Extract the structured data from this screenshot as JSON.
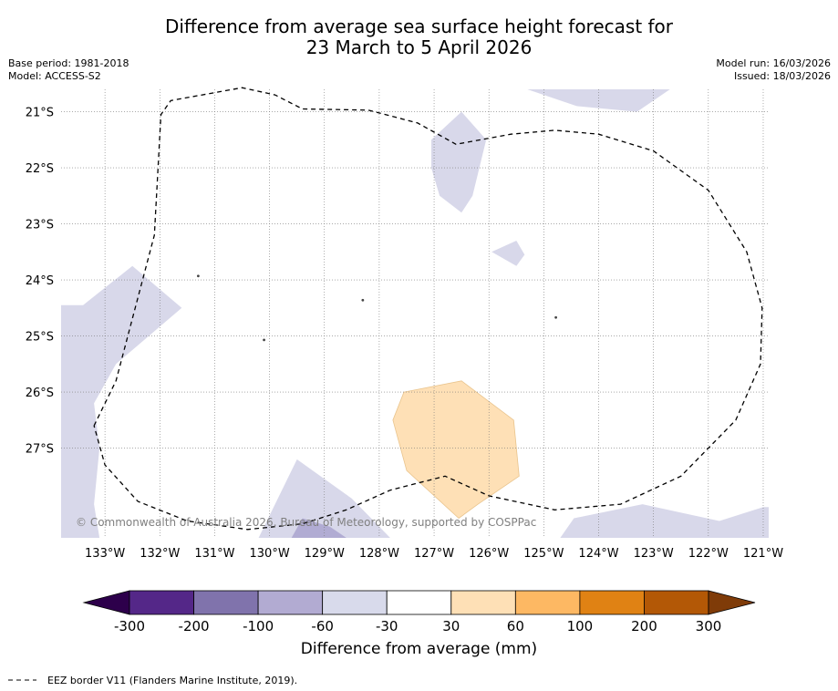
{
  "title": {
    "line1": "Difference from average sea surface height forecast for",
    "line2": "23 March to 5 April 2026"
  },
  "meta": {
    "base_period": "Base period: 1981-2018",
    "model": "Model: ACCESS-S2",
    "model_run": "Model run: 16/03/2026",
    "issued": "Issued: 18/03/2026"
  },
  "map": {
    "lon_range": [
      -133.8,
      -120.9
    ],
    "lat_range": [
      -28.6,
      -20.6
    ],
    "lon_ticks": [
      {
        "value": -133,
        "label": "133°W"
      },
      {
        "value": -132,
        "label": "132°W"
      },
      {
        "value": -131,
        "label": "131°W"
      },
      {
        "value": -130,
        "label": "130°W"
      },
      {
        "value": -129,
        "label": "129°W"
      },
      {
        "value": -128,
        "label": "128°W"
      },
      {
        "value": -127,
        "label": "127°W"
      },
      {
        "value": -126,
        "label": "126°W"
      },
      {
        "value": -125,
        "label": "125°W"
      },
      {
        "value": -124,
        "label": "124°W"
      },
      {
        "value": -123,
        "label": "123°W"
      },
      {
        "value": -122,
        "label": "122°W"
      },
      {
        "value": -121,
        "label": "121°W"
      }
    ],
    "lat_ticks": [
      {
        "value": -21,
        "label": "21°S"
      },
      {
        "value": -22,
        "label": "22°S"
      },
      {
        "value": -23,
        "label": "23°S"
      },
      {
        "value": -24,
        "label": "24°S"
      },
      {
        "value": -25,
        "label": "25°S"
      },
      {
        "value": -26,
        "label": "26°S"
      },
      {
        "value": -27,
        "label": "27°S"
      }
    ],
    "attribution": "© Commonwealth of Australia 2026, Bureau of Meteorology, supported by COSPPac",
    "regions": [
      {
        "name": "region-north-top",
        "color": "#d8d8ea",
        "points": [
          [
            -125.3,
            -20.6
          ],
          [
            -122.7,
            -20.6
          ],
          [
            -123.3,
            -21.0
          ],
          [
            -124.4,
            -20.9
          ]
        ]
      },
      {
        "name": "region-north-center",
        "color": "#d8d8ea",
        "points": [
          [
            -127.05,
            -21.5
          ],
          [
            -126.5,
            -21.0
          ],
          [
            -126.05,
            -21.5
          ],
          [
            -126.3,
            -22.5
          ],
          [
            -126.5,
            -22.8
          ],
          [
            -126.9,
            -22.5
          ],
          [
            -127.05,
            -22.0
          ]
        ]
      },
      {
        "name": "region-small-patch",
        "color": "#d8d8ea",
        "points": [
          [
            -125.95,
            -23.5
          ],
          [
            -125.5,
            -23.3
          ],
          [
            -125.35,
            -23.55
          ],
          [
            -125.5,
            -23.75
          ]
        ]
      },
      {
        "name": "region-west",
        "color": "#d8d8ea",
        "points": [
          [
            -133.8,
            -24.45
          ],
          [
            -133.4,
            -24.45
          ],
          [
            -132.5,
            -23.75
          ],
          [
            -131.6,
            -24.5
          ],
          [
            -132.8,
            -25.5
          ],
          [
            -133.2,
            -26.2
          ],
          [
            -133.1,
            -27.0
          ],
          [
            -133.2,
            -28.0
          ],
          [
            -133.1,
            -28.6
          ],
          [
            -133.8,
            -28.6
          ]
        ]
      },
      {
        "name": "region-south-central",
        "color": "#d8d8ea",
        "points": [
          [
            -130.2,
            -28.6
          ],
          [
            -129.5,
            -27.2
          ],
          [
            -128.5,
            -27.9
          ],
          [
            -128.1,
            -28.3
          ],
          [
            -127.8,
            -28.6
          ]
        ]
      },
      {
        "name": "region-south-central-inner",
        "color": "#b1acd3",
        "points": [
          [
            -129.6,
            -28.6
          ],
          [
            -129.4,
            -28.25
          ],
          [
            -128.9,
            -28.4
          ],
          [
            -128.6,
            -28.6
          ]
        ]
      },
      {
        "name": "region-south-east",
        "color": "#d8d8ea",
        "points": [
          [
            -124.7,
            -28.6
          ],
          [
            -124.45,
            -28.25
          ],
          [
            -123.2,
            -28.0
          ],
          [
            -121.8,
            -28.3
          ],
          [
            -121.0,
            -28.05
          ],
          [
            -120.9,
            -28.05
          ],
          [
            -120.9,
            -28.6
          ]
        ]
      },
      {
        "name": "region-positive-center",
        "color": "#fee0b6",
        "points": [
          [
            -127.55,
            -26.0
          ],
          [
            -126.5,
            -25.8
          ],
          [
            -125.55,
            -26.5
          ],
          [
            -125.45,
            -27.5
          ],
          [
            -126.2,
            -28.0
          ],
          [
            -126.55,
            -28.25
          ],
          [
            -127.5,
            -27.4
          ],
          [
            -127.75,
            -26.5
          ]
        ]
      }
    ],
    "eez_border": [
      [
        -133.2,
        -26.6
      ],
      [
        -132.8,
        -25.8
      ],
      [
        -132.1,
        -23.2
      ],
      [
        -131.98,
        -21.05
      ],
      [
        -131.8,
        -20.8
      ],
      [
        -130.5,
        -20.57
      ],
      [
        -129.9,
        -20.7
      ],
      [
        -129.4,
        -20.95
      ],
      [
        -128.2,
        -20.97
      ],
      [
        -127.3,
        -21.2
      ],
      [
        -126.6,
        -21.58
      ],
      [
        -125.6,
        -21.4
      ],
      [
        -124.8,
        -21.33
      ],
      [
        -124.0,
        -21.4
      ],
      [
        -123.0,
        -21.7
      ],
      [
        -122.0,
        -22.4
      ],
      [
        -121.3,
        -23.5
      ],
      [
        -121.02,
        -24.5
      ],
      [
        -121.05,
        -25.5
      ],
      [
        -121.5,
        -26.5
      ],
      [
        -122.5,
        -27.5
      ],
      [
        -123.6,
        -28.0
      ],
      [
        -124.8,
        -28.1
      ],
      [
        -126.0,
        -27.85
      ],
      [
        -126.8,
        -27.5
      ],
      [
        -127.8,
        -27.75
      ],
      [
        -128.6,
        -28.1
      ],
      [
        -129.4,
        -28.35
      ],
      [
        -130.4,
        -28.45
      ],
      [
        -131.5,
        -28.3
      ],
      [
        -132.4,
        -27.95
      ],
      [
        -133.0,
        -27.3
      ],
      [
        -133.2,
        -26.6
      ]
    ],
    "islands": [
      {
        "name": "island-1",
        "lon": -131.3,
        "lat": -23.93
      },
      {
        "name": "island-2",
        "lon": -128.3,
        "lat": -24.36
      },
      {
        "name": "island-3",
        "lon": -130.1,
        "lat": -25.07
      },
      {
        "name": "island-4",
        "lon": -124.78,
        "lat": -24.67
      }
    ]
  },
  "colorbar": {
    "bins": [
      {
        "color": "#542788"
      },
      {
        "color": "#8073ac"
      },
      {
        "color": "#b2abd2"
      },
      {
        "color": "#d8daeb"
      },
      {
        "color": "#ffffff"
      },
      {
        "color": "#fee0b6"
      },
      {
        "color": "#fdb863"
      },
      {
        "color": "#e08214"
      },
      {
        "color": "#b35806"
      }
    ],
    "under_color": "#2d004b",
    "over_color": "#7f3b08",
    "ticks": [
      "-300",
      "-200",
      "-100",
      "-60",
      "-30",
      "30",
      "60",
      "100",
      "200",
      "300"
    ],
    "label": "Difference from average (mm)"
  },
  "footer": {
    "legend_symbol": "-- -- --",
    "text": "EEZ border V11 (Flanders Marine Institute, 2019)."
  }
}
